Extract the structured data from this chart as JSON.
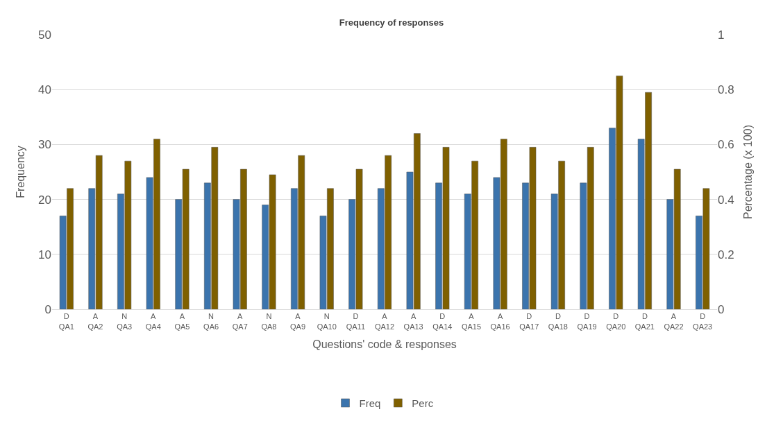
{
  "chart_data": {
    "type": "bar",
    "title": "Frequency of responses",
    "xlabel": "Questions' code & responses",
    "ylabel": "Frequency",
    "y2label": "Percentage (x 100)",
    "categories": [
      "D\nQA1",
      "A\nQA2",
      "N\nQA3",
      "A\nQA4",
      "A\nQA5",
      "N\nQA6",
      "A\nQA7",
      "N\nQA8",
      "A\nQA9",
      "N\nQA10",
      "D\nQA11",
      "A\nQA12",
      "A\nQA13",
      "D\nQA14",
      "A\nQA15",
      "A\nQA16",
      "D\nQA17",
      "D\nQA18",
      "D\nQA19",
      "D\nQA20",
      "D\nQA21",
      "A\nQA22",
      "D\nQA23"
    ],
    "series": [
      {
        "name": "Freq",
        "color": "#3b74ad",
        "values": [
          17,
          22,
          21,
          24,
          20,
          23,
          20,
          19,
          22,
          17,
          20,
          22,
          25,
          23,
          21,
          24,
          23,
          21,
          23,
          33,
          31,
          20,
          17
        ]
      },
      {
        "name": "Perc",
        "color": "#7f6000",
        "axis": "y2",
        "values": [
          0.44,
          0.56,
          0.54,
          0.62,
          0.51,
          0.59,
          0.51,
          0.49,
          0.56,
          0.44,
          0.51,
          0.56,
          0.64,
          0.59,
          0.54,
          0.62,
          0.59,
          0.54,
          0.59,
          0.85,
          0.79,
          0.51,
          0.44
        ]
      }
    ],
    "ylim": [
      0,
      50
    ],
    "yticks": [
      0,
      10,
      20,
      30,
      40,
      50
    ],
    "y2lim": [
      0,
      1
    ],
    "y2ticks": [
      0,
      0.2,
      0.4,
      0.6,
      0.8,
      1
    ],
    "grid": "y",
    "legend": "bottom"
  }
}
